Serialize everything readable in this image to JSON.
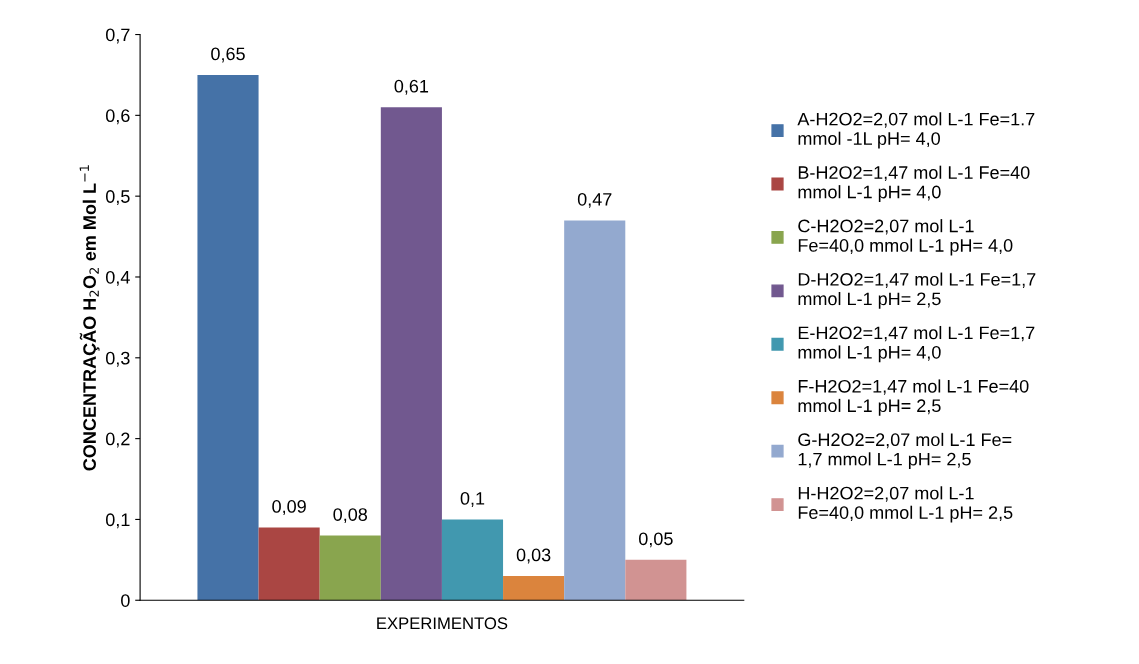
{
  "chart_data": {
    "type": "bar",
    "ylabel": "CONCENTRAÇÃO H$_{2}$O$_{2}$ em Mol L$^{−1}$",
    "categories": [
      "EXPERIMENTOS"
    ],
    "series": [
      {
        "name": "A-H2O2=2,07 mol L-1 Fe=1.7 mmol -1L pH= 4,0",
        "color": "#4572a7",
        "values": [
          0.65
        ],
        "value_labels": [
          "0,65"
        ]
      },
      {
        "name": "B-H2O2=1,47 mol L-1 Fe=40 mmol L-1 pH= 4,0",
        "color": "#aa4643",
        "values": [
          0.09
        ],
        "value_labels": [
          "0,09"
        ]
      },
      {
        "name": "C-H2O2=2,07 mol L-1 Fe=40,0 mmol L-1 pH= 4,0",
        "color": "#89a54e",
        "values": [
          0.08
        ],
        "value_labels": [
          "0,08"
        ]
      },
      {
        "name": "D-H2O2=1,47 mol L-1 Fe=1,7 mmol L-1 pH= 2,5",
        "color": "#71588f",
        "values": [
          0.61
        ],
        "value_labels": [
          "0,61"
        ]
      },
      {
        "name": "E-H2O2=1,47 mol L-1 Fe=1,7 mmol L-1 pH= 4,0",
        "color": "#4198af",
        "values": [
          0.1
        ],
        "value_labels": [
          "0,1"
        ]
      },
      {
        "name": "F-H2O2=1,47 mol L-1 Fe=40 mmol L-1 pH= 2,5",
        "color": "#db843d",
        "values": [
          0.03
        ],
        "value_labels": [
          "0,03"
        ]
      },
      {
        "name": "G-H2O2=2,07 mol L-1 Fe= 1,7 mmol L-1 pH= 2,5",
        "color": "#93a9cf",
        "values": [
          0.47
        ],
        "value_labels": [
          "0,47"
        ]
      },
      {
        "name": "H-H2O2=2,07 mol L-1 Fe=40,0 mmol L-1 pH= 2,5",
        "color": "#d19392",
        "values": [
          0.05
        ],
        "value_labels": [
          "0,05"
        ]
      }
    ],
    "ylim": [
      0,
      0.7
    ],
    "yticks": [
      {
        "value": 0,
        "label": "0"
      },
      {
        "value": 0.1,
        "label": "0,1"
      },
      {
        "value": 0.2,
        "label": "0,2"
      },
      {
        "value": 0.3,
        "label": "0,3"
      },
      {
        "value": 0.4,
        "label": "0,4"
      },
      {
        "value": 0.5,
        "label": "0,5"
      },
      {
        "value": 0.6,
        "label": "0,6"
      },
      {
        "value": 0.7,
        "label": "0,7"
      }
    ],
    "grid": false,
    "legend": "right"
  }
}
